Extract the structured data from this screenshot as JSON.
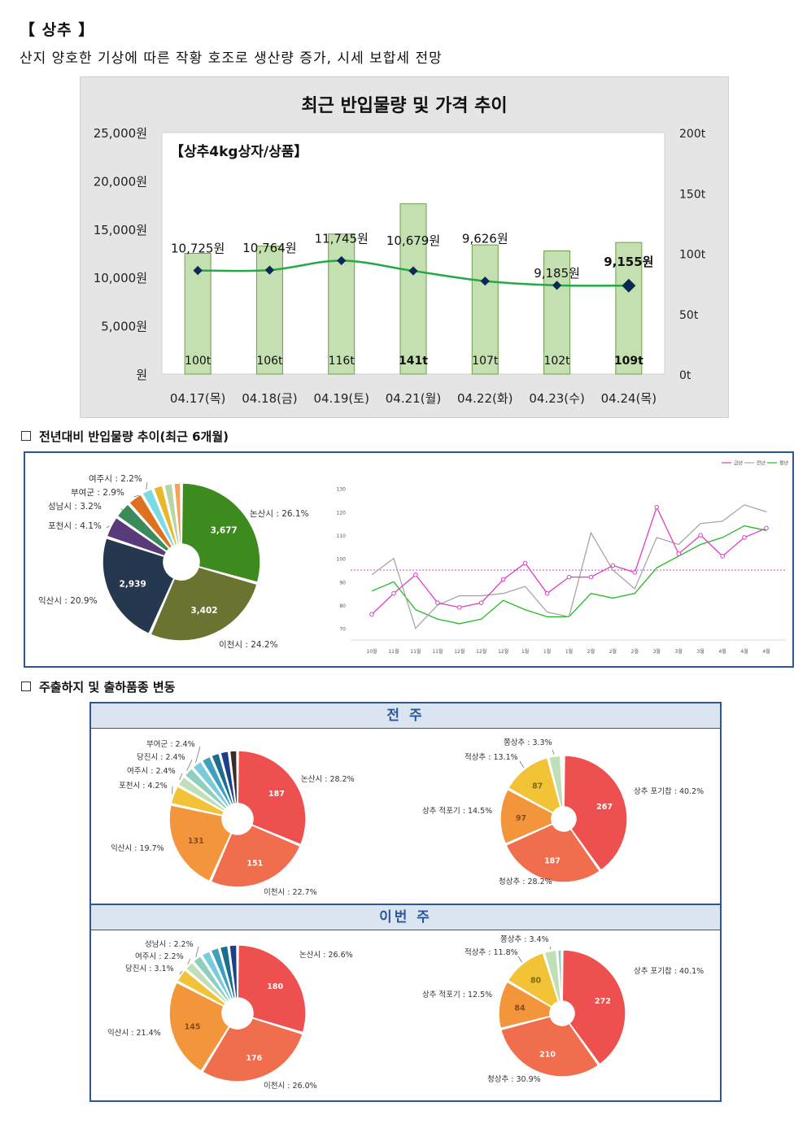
{
  "header": {
    "title": "【 상추 】",
    "subtitle": "산지 양호한 기상에 따른 작황 호조로 생산량 증가, 시세 보합세 전망"
  },
  "chart1": {
    "title": "최근 반입물량 및 가격 추이",
    "inner_label": "【상추4kg상자/상품】",
    "chart_data": {
      "type": "bar+line",
      "categories": [
        "04.17(목)",
        "04.18(금)",
        "04.19(토)",
        "04.21(월)",
        "04.22(화)",
        "04.23(수)",
        "04.24(목)"
      ],
      "bar_values": [
        100,
        106,
        116,
        141,
        107,
        102,
        109
      ],
      "bar_labels": [
        "100t",
        "106t",
        "116t",
        "141t",
        "107t",
        "102t",
        "109t"
      ],
      "line_values": [
        10725,
        10764,
        11745,
        10679,
        9626,
        9185,
        9155
      ],
      "line_labels": [
        "10,725원",
        "10,764원",
        "11,745원",
        "10,679원",
        "9,626원",
        "9,185원",
        "9,155원"
      ],
      "left_axis_ticks": [
        "25,000원",
        "20,000원",
        "15,000원",
        "10,000원",
        "5,000원",
        "원"
      ],
      "right_axis_ticks": [
        "200t",
        "150t",
        "100t",
        "50t",
        "0t"
      ],
      "left_range": [
        0,
        25000
      ],
      "right_range": [
        0,
        200
      ],
      "bar_color": "#c4e0b0",
      "line_color": "#22aa44"
    }
  },
  "section1": {
    "title": "전년대비 반입물량 추이(최근 6개월)"
  },
  "donut1": {
    "chart_data": {
      "type": "pie",
      "slices": [
        {
          "label": "논산시 : 26.1%",
          "share": 26.1,
          "value": "3,677",
          "color": "#3d8b1e"
        },
        {
          "label": "이천시 : 24.2%",
          "share": 24.2,
          "value": "3,402",
          "color": "#6b7331"
        },
        {
          "label": "익산시 : 20.9%",
          "share": 20.9,
          "value": "2,939",
          "color": "#253850"
        },
        {
          "label": "포천시 : 4.1%",
          "share": 4.1,
          "value": "",
          "color": "#5a3b7a"
        },
        {
          "label": "성남시 : 3.2%",
          "share": 3.2,
          "value": "",
          "color": "#3a8a5a"
        },
        {
          "label": "부여군 : 2.9%",
          "share": 2.9,
          "value": "",
          "color": "#e07020"
        },
        {
          "label": "여주시 : 2.2%",
          "share": 2.2,
          "value": "",
          "color": "#7adbe5"
        },
        {
          "label": "",
          "share": 2.0,
          "value": "",
          "color": "#e8b82a"
        },
        {
          "label": "",
          "share": 1.8,
          "value": "",
          "color": "#b7d6a4"
        },
        {
          "label": "",
          "share": 1.5,
          "value": "",
          "color": "#f2a35c"
        }
      ]
    }
  },
  "line2": {
    "chart_data": {
      "type": "line",
      "legend": [
        "금년",
        "전년",
        "평년"
      ],
      "x_labels": [
        "10월",
        "11월",
        "11월",
        "11월",
        "12월",
        "12월",
        "12월",
        "1월",
        "1월",
        "1월",
        "2월",
        "2월",
        "2월",
        "3월",
        "3월",
        "3월",
        "4월",
        "4월",
        "4월"
      ],
      "y_ticks": [
        "130",
        "120",
        "110",
        "100",
        "90",
        "80",
        "70"
      ],
      "ylim": [
        65,
        132
      ],
      "series": [
        {
          "name": "금년",
          "color": "#e03cc7",
          "values": [
            76,
            85,
            93,
            81,
            79,
            81,
            91,
            98,
            85,
            92,
            92,
            97,
            94,
            122,
            102,
            110,
            101,
            109,
            113
          ]
        },
        {
          "name": "전년",
          "color": "#a6a6a6",
          "values": [
            93,
            100,
            70,
            80,
            84,
            84,
            85,
            88,
            77,
            75,
            111,
            95,
            87,
            109,
            106,
            115,
            116,
            123,
            120
          ]
        },
        {
          "name": "평년",
          "color": "#22bb22",
          "values": [
            86,
            90,
            78,
            74,
            72,
            74,
            82,
            78,
            75,
            75,
            85,
            83,
            85,
            96,
            101,
            106,
            109,
            114,
            112
          ]
        }
      ],
      "reference_line": 95
    }
  },
  "section2": {
    "title": "주출하지 및 출하품종 변동"
  },
  "panel3": {
    "prev_label": "전 주",
    "curr_label": "이번 주",
    "prev_region": {
      "chart_data": {
        "type": "pie",
        "slices": [
          {
            "label": "논산시 : 28.2%",
            "share": 28.2,
            "value": "187",
            "color": "#ee4f4f"
          },
          {
            "label": "이천시 : 22.7%",
            "share": 22.7,
            "value": "151",
            "color": "#f06d4e"
          },
          {
            "label": "익산시 : 19.7%",
            "share": 19.7,
            "value": "131",
            "color": "#f3963b"
          },
          {
            "label": "포천시 : 4.2%",
            "share": 4.2,
            "value": "",
            "color": "#f2c237"
          },
          {
            "label": "여주시 : 2.4%",
            "share": 2.4,
            "value": "",
            "color": "#bfe0b6"
          },
          {
            "label": "당진시 : 2.4%",
            "share": 2.4,
            "value": "",
            "color": "#8ecfc0"
          },
          {
            "label": "부여군 : 2.4%",
            "share": 2.4,
            "value": "",
            "color": "#7ccbdb"
          },
          {
            "label": "",
            "share": 2.2,
            "value": "",
            "color": "#3f9fbf"
          },
          {
            "label": "",
            "share": 2.0,
            "value": "",
            "color": "#1d6d8e"
          },
          {
            "label": "",
            "share": 2.0,
            "value": "",
            "color": "#1c3f8c"
          },
          {
            "label": "",
            "share": 1.8,
            "value": "",
            "color": "#3a2a2a"
          }
        ]
      }
    },
    "prev_variety": {
      "chart_data": {
        "type": "pie",
        "slices": [
          {
            "label": "상추 포기찹 : 40.2%",
            "share": 40.2,
            "value": "267",
            "color": "#ee4f4f"
          },
          {
            "label": "청상추 : 28.2%",
            "share": 28.2,
            "value": "187",
            "color": "#f06d4e"
          },
          {
            "label": "상추 적포기 : 14.5%",
            "share": 14.5,
            "value": "97",
            "color": "#f3963b"
          },
          {
            "label": "적상추 : 13.1%",
            "share": 13.1,
            "value": "87",
            "color": "#f2c237"
          },
          {
            "label": "쫑상추 : 3.3%",
            "share": 3.3,
            "value": "",
            "color": "#bfe0b6"
          },
          {
            "label": "",
            "share": 0.7,
            "value": "",
            "color": "#8ecfc0"
          }
        ]
      }
    },
    "curr_region": {
      "chart_data": {
        "type": "pie",
        "slices": [
          {
            "label": "논산시 : 26.6%",
            "share": 26.6,
            "value": "180",
            "color": "#ee4f4f"
          },
          {
            "label": "이천시 : 26.0%",
            "share": 26.0,
            "value": "176",
            "color": "#f06d4e"
          },
          {
            "label": "익산시 : 21.4%",
            "share": 21.4,
            "value": "145",
            "color": "#f3963b"
          },
          {
            "label": "당진시 : 3.1%",
            "share": 3.1,
            "value": "",
            "color": "#f2c237"
          },
          {
            "label": "여주시 : 2.2%",
            "share": 2.2,
            "value": "",
            "color": "#bfe0b6"
          },
          {
            "label": "성남시 : 2.2%",
            "share": 2.2,
            "value": "",
            "color": "#8ecfc0"
          },
          {
            "label": "",
            "share": 2.1,
            "value": "",
            "color": "#7ccbdb"
          },
          {
            "label": "",
            "share": 2.0,
            "value": "",
            "color": "#3f9fbf"
          },
          {
            "label": "",
            "share": 2.0,
            "value": "",
            "color": "#1d6d8e"
          },
          {
            "label": "",
            "share": 1.9,
            "value": "",
            "color": "#1c3f8c"
          }
        ]
      }
    },
    "curr_variety": {
      "chart_data": {
        "type": "pie",
        "slices": [
          {
            "label": "상추 포기찹 : 40.1%",
            "share": 40.1,
            "value": "272",
            "color": "#ee4f4f"
          },
          {
            "label": "청상추 : 30.9%",
            "share": 30.9,
            "value": "210",
            "color": "#f06d4e"
          },
          {
            "label": "상추 적포기 : 12.5%",
            "share": 12.5,
            "value": "84",
            "color": "#f3963b"
          },
          {
            "label": "적상추 : 11.8%",
            "share": 11.8,
            "value": "80",
            "color": "#f2c237"
          },
          {
            "label": "쫑상추 : 3.4%",
            "share": 3.4,
            "value": "",
            "color": "#bfe0b6"
          },
          {
            "label": "",
            "share": 1.3,
            "value": "",
            "color": "#8ecfc0"
          }
        ]
      }
    }
  }
}
